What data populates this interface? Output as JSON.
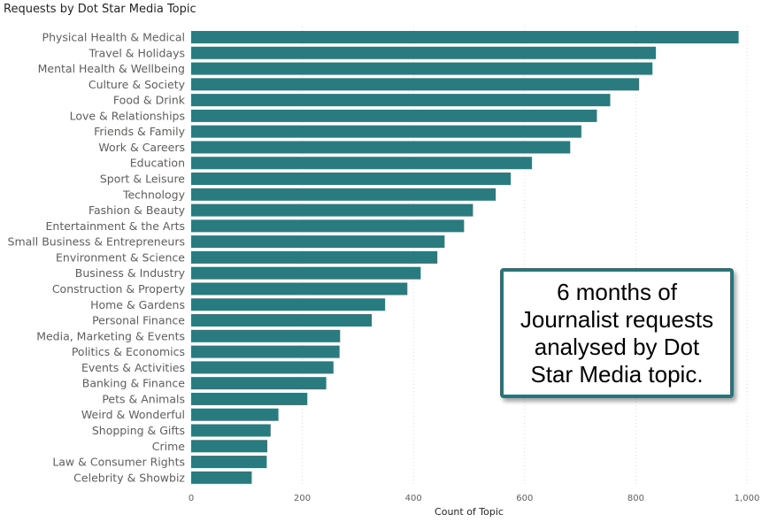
{
  "chart_data": {
    "type": "bar",
    "orientation": "horizontal",
    "title": "Requests by Dot Star Media Topic",
    "xlabel": "Count of Topic",
    "ylabel": "",
    "xlim": [
      0,
      1000
    ],
    "xticks": [
      "0",
      "200",
      "400",
      "600",
      "800",
      "1,000"
    ],
    "grid": "vertical dotted",
    "color": "#2a7b80",
    "categories": [
      "Physical Health & Medical",
      "Travel & Holidays",
      "Mental Health & Wellbeing",
      "Culture & Society",
      "Food & Drink",
      "Love & Relationships",
      "Friends & Family",
      "Work & Careers",
      "Education",
      "Sport & Leisure",
      "Technology",
      "Fashion & Beauty",
      "Entertainment & the Arts",
      "Small Business & Entrepreneurs",
      "Environment & Science",
      "Business & Industry",
      "Construction & Property",
      "Home & Gardens",
      "Personal Finance",
      "Media, Marketing & Events",
      "Politics & Economics",
      "Events & Activities",
      "Banking & Finance",
      "Pets & Animals",
      "Weird & Wonderful",
      "Shopping & Gifts",
      "Crime",
      "Law & Consumer Rights",
      "Celebrity & Showbiz"
    ],
    "values": [
      985,
      836,
      830,
      806,
      754,
      730,
      702,
      682,
      613,
      575,
      548,
      507,
      491,
      456,
      443,
      413,
      389,
      349,
      325,
      268,
      267,
      256,
      243,
      209,
      157,
      143,
      137,
      136,
      109
    ]
  },
  "annotation": {
    "text": "6 months of Journalist requests analysed by Dot Star Media topic."
  }
}
